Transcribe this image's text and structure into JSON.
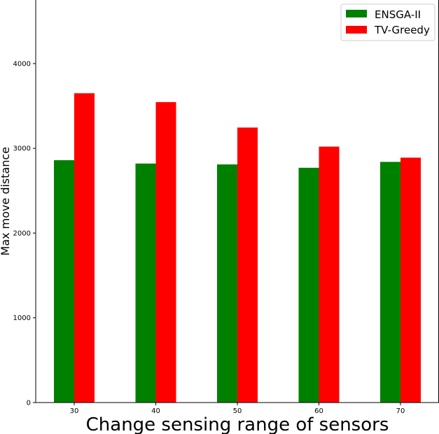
{
  "chart_data": {
    "type": "bar",
    "title": "",
    "xlabel": "Change sensing range of sensors",
    "ylabel": "Max move distance",
    "categories": [
      "30",
      "40",
      "50",
      "60",
      "70"
    ],
    "series": [
      {
        "name": "ENSGA-II",
        "color": "#008000",
        "values": [
          2860,
          2820,
          2810,
          2770,
          2840
        ]
      },
      {
        "name": "TV-Greedy",
        "color": "#ff0000",
        "values": [
          3650,
          3545,
          3245,
          3020,
          2890
        ]
      }
    ],
    "ylim": [
      0,
      4750
    ],
    "yticks": [
      "0",
      "1000",
      "2000",
      "3000",
      "4000"
    ],
    "grid": false,
    "legend_position": "top-right"
  }
}
